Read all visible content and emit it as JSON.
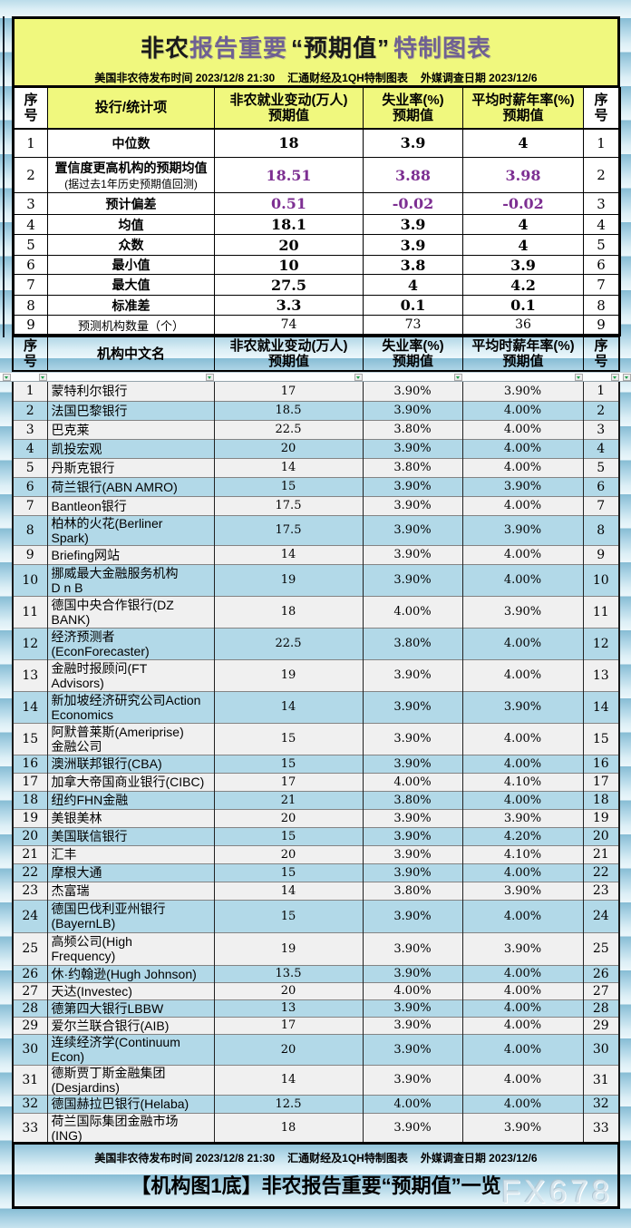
{
  "colors": {
    "header_yellow": "#f0f87e",
    "highlight_purple": "#7d2f92",
    "title_purple": "#6f6093",
    "row_blue": "#b2d9e8",
    "row_gray": "#f0f0f0",
    "background_stripe_blue": "#86bcd4"
  },
  "icons": {
    "autofilter_dropdown": "small gray square button with green down-arrow"
  },
  "header": {
    "title_segments": [
      {
        "text": "非农",
        "color": "#1a1a1a",
        "q": false
      },
      {
        "text": "报告重要",
        "color": "#6f6093",
        "q": false
      },
      {
        "text": "“预期值”",
        "color": "#1a1a1a",
        "q": true
      },
      {
        "text": "特制图表",
        "color": "#6f6093",
        "q": false
      }
    ],
    "subtitle_parts": [
      "美国非农待发布时间 2023/12/8 21:30",
      "汇通财经及1QH特制图表",
      "外媒调查日期 2023/12/6"
    ]
  },
  "summary_table": {
    "columns": [
      "序\n号",
      "投行/统计项",
      "非农就业变动(万人)\n预期值",
      "失业率(%)\n预期值",
      "平均时薪年率(%)\n预期值",
      "序\n号"
    ],
    "rows": [
      {
        "no": "1",
        "label": "中位数",
        "v1": "18",
        "v2": "3.9",
        "v3": "4",
        "style": "normal"
      },
      {
        "no": "2",
        "label": "置信度更高机构的预期均值",
        "sublabel": "(据过去1年历史预期值回测)",
        "v1": "18.51",
        "v2": "3.88",
        "v3": "3.98",
        "style": "purple"
      },
      {
        "no": "3",
        "label": "预计偏差",
        "v1": "0.51",
        "v2": "-0.02",
        "v3": "-0.02",
        "style": "purple"
      },
      {
        "no": "4",
        "label": "均值",
        "v1": "18.1",
        "v2": "3.9",
        "v3": "4",
        "style": "normal"
      },
      {
        "no": "5",
        "label": "众数",
        "v1": "20",
        "v2": "3.9",
        "v3": "4",
        "style": "normal"
      },
      {
        "no": "6",
        "label": "最小值",
        "v1": "10",
        "v2": "3.8",
        "v3": "3.9",
        "style": "normal"
      },
      {
        "no": "7",
        "label": "最大值",
        "v1": "27.5",
        "v2": "4",
        "v3": "4.2",
        "style": "normal"
      },
      {
        "no": "8",
        "label": "标准差",
        "v1": "3.3",
        "v2": "0.1",
        "v3": "0.1",
        "style": "normal"
      },
      {
        "no": "9",
        "label": "预测机构数量（个）",
        "v1": "74",
        "v2": "73",
        "v3": "36",
        "style": "light"
      }
    ]
  },
  "institution_table": {
    "columns": [
      "序\n号",
      "机构中文名",
      "非农就业变动(万人)\n预期值",
      "失业率(%)\n预期值",
      "平均时薪年率(%)\n预期值",
      "序\n号"
    ],
    "rows": [
      {
        "no": "1",
        "name": "蒙特利尔银行",
        "v1": "17",
        "v2": "3.90%",
        "v3": "3.90%"
      },
      {
        "no": "2",
        "name": "法国巴黎银行",
        "v1": "18.5",
        "v2": "3.90%",
        "v3": "4.00%"
      },
      {
        "no": "3",
        "name": "巴克莱",
        "v1": "22.5",
        "v2": "3.80%",
        "v3": "4.00%"
      },
      {
        "no": "4",
        "name": "凯投宏观",
        "v1": "20",
        "v2": "3.90%",
        "v3": "4.00%"
      },
      {
        "no": "5",
        "name": "丹斯克银行",
        "v1": "14",
        "v2": "3.80%",
        "v3": "4.00%"
      },
      {
        "no": "6",
        "name": "荷兰银行(ABN AMRO)",
        "v1": "15",
        "v2": "3.90%",
        "v3": "3.90%"
      },
      {
        "no": "7",
        "name": "Bantleon银行",
        "v1": "17.5",
        "v2": "3.90%",
        "v3": "4.00%"
      },
      {
        "no": "8",
        "name": "柏林的火花(Berliner\nSpark)",
        "v1": "17.5",
        "v2": "3.90%",
        "v3": "3.90%"
      },
      {
        "no": "9",
        "name": "Briefing网站",
        "v1": "14",
        "v2": "3.90%",
        "v3": "4.00%"
      },
      {
        "no": "10",
        "name": "挪威最大金融服务机构\nD n B",
        "v1": "19",
        "v2": "3.90%",
        "v3": "4.00%"
      },
      {
        "no": "11",
        "name": "德国中央合作银行(DZ\nBANK)",
        "v1": "18",
        "v2": "4.00%",
        "v3": "3.90%"
      },
      {
        "no": "12",
        "name": "经济预测者\n(EconForecaster)",
        "v1": "22.5",
        "v2": "3.80%",
        "v3": "4.00%"
      },
      {
        "no": "13",
        "name": "金融时报顾问(FT\nAdvisors)",
        "v1": "19",
        "v2": "3.90%",
        "v3": "4.00%"
      },
      {
        "no": "14",
        "name": "新加坡经济研究公司Action\nEconomics",
        "v1": "14",
        "v2": "3.90%",
        "v3": "3.90%"
      },
      {
        "no": "15",
        "name": "阿默普莱斯(Ameriprise)\n金融公司",
        "v1": "15",
        "v2": "3.90%",
        "v3": "4.00%"
      },
      {
        "no": "16",
        "name": "澳洲联邦银行(CBA)",
        "v1": "15",
        "v2": "3.90%",
        "v3": "4.00%"
      },
      {
        "no": "17",
        "name": "加拿大帝国商业银行(CIBC)",
        "v1": "17",
        "v2": "4.00%",
        "v3": "4.10%"
      },
      {
        "no": "18",
        "name": "纽约FHN金融",
        "v1": "21",
        "v2": "3.80%",
        "v3": "4.00%"
      },
      {
        "no": "19",
        "name": "美银美林",
        "v1": "20",
        "v2": "3.90%",
        "v3": "3.90%"
      },
      {
        "no": "20",
        "name": "美国联信银行",
        "v1": "15",
        "v2": "3.90%",
        "v3": "4.20%"
      },
      {
        "no": "21",
        "name": "汇丰",
        "v1": "20",
        "v2": "3.90%",
        "v3": "4.10%"
      },
      {
        "no": "22",
        "name": "摩根大通",
        "v1": "15",
        "v2": "3.90%",
        "v3": "4.00%"
      },
      {
        "no": "23",
        "name": "杰富瑞",
        "v1": "14",
        "v2": "3.80%",
        "v3": "3.90%"
      },
      {
        "no": "24",
        "name": "德国巴伐利亚州银行\n(BayernLB)",
        "v1": "15",
        "v2": "3.90%",
        "v3": "4.00%"
      },
      {
        "no": "25",
        "name": "高频公司(High\nFrequency)",
        "v1": "19",
        "v2": "3.90%",
        "v3": "3.90%"
      },
      {
        "no": "26",
        "name": "休·约翰逊(Hugh Johnson)",
        "v1": "13.5",
        "v2": "3.90%",
        "v3": "4.00%"
      },
      {
        "no": "27",
        "name": "天达(Investec)",
        "v1": "20",
        "v2": "4.00%",
        "v3": "4.00%"
      },
      {
        "no": "28",
        "name": "德第四大银行LBBW",
        "v1": "13",
        "v2": "3.90%",
        "v3": "4.00%"
      },
      {
        "no": "29",
        "name": "爱尔兰联合银行(AIB)",
        "v1": "17",
        "v2": "3.90%",
        "v3": "4.00%"
      },
      {
        "no": "30",
        "name": "连续经济学(Continuum\nEcon)",
        "v1": "20",
        "v2": "3.90%",
        "v3": "4.00%"
      },
      {
        "no": "31",
        "name": "德斯贾丁斯金融集团\n(Desjardins)",
        "v1": "14",
        "v2": "3.90%",
        "v3": "4.00%"
      },
      {
        "no": "32",
        "name": "德国赫拉巴银行(Helaba)",
        "v1": "12.5",
        "v2": "4.00%",
        "v3": "4.00%"
      },
      {
        "no": "33",
        "name": "荷兰国际集团金融市场\n(ING)",
        "v1": "18",
        "v2": "3.90%",
        "v3": "3.90%"
      }
    ]
  },
  "footer": {
    "subtitle_parts": [
      "美国非农待发布时间 2023/12/8 21:30",
      "汇通财经及1QH特制图表",
      "外媒调查日期 2023/12/6"
    ],
    "title": "【机构图1底】非农报告重要“预期值”一览",
    "watermark": "FX678"
  }
}
